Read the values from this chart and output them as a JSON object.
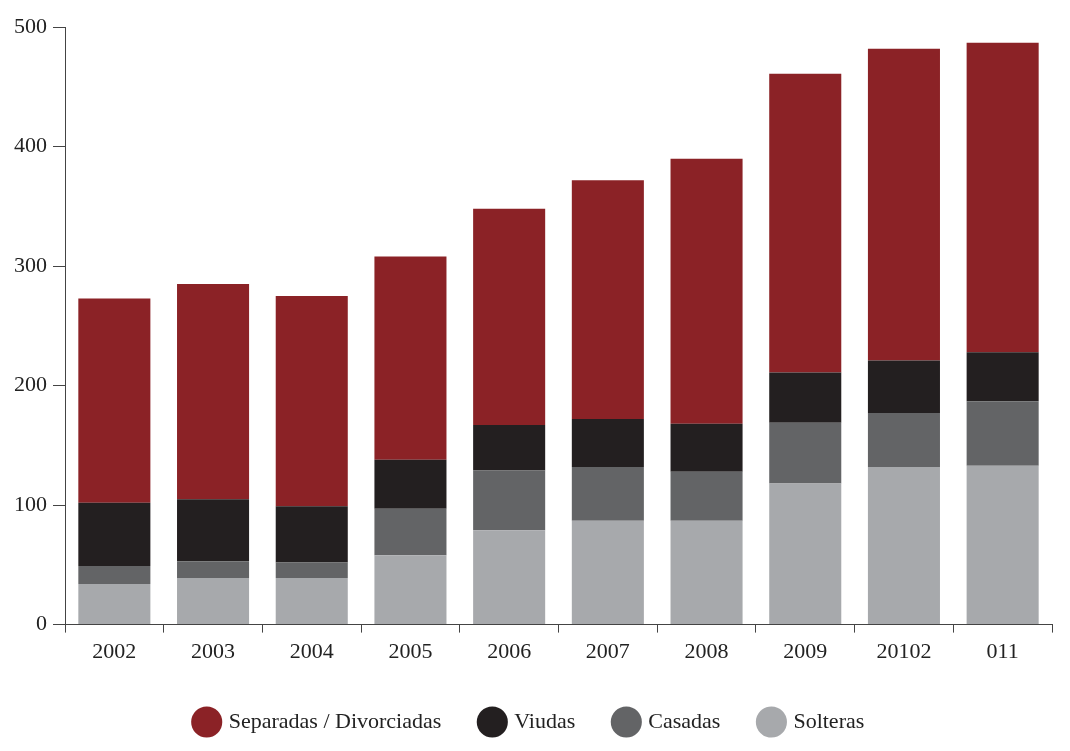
{
  "chart_data": {
    "type": "bar",
    "stacked": true,
    "categories": [
      "2002",
      "2003",
      "2004",
      "2005",
      "2006",
      "2007",
      "2008",
      "2009",
      "20102",
      "011"
    ],
    "series": [
      {
        "name": "Solteras",
        "color": "#a7a9ac",
        "values": [
          34,
          39,
          39,
          58,
          79,
          87,
          87,
          118,
          132,
          133
        ]
      },
      {
        "name": "Casadas",
        "color": "#636466",
        "values": [
          15,
          14,
          13,
          39,
          50,
          45,
          41,
          51,
          45,
          54
        ]
      },
      {
        "name": "Viudas",
        "color": "#231f20",
        "values": [
          53,
          52,
          47,
          41,
          38,
          40,
          40,
          42,
          44,
          41
        ]
      },
      {
        "name": "Separadas / Divorciadas",
        "color": "#8b2226",
        "values": [
          171,
          180,
          176,
          170,
          181,
          200,
          222,
          250,
          261,
          259
        ]
      }
    ],
    "ylim": [
      0,
      500
    ],
    "yticks": [
      0,
      100,
      200,
      300,
      400,
      500
    ],
    "grid": false,
    "legend": "bottom"
  }
}
